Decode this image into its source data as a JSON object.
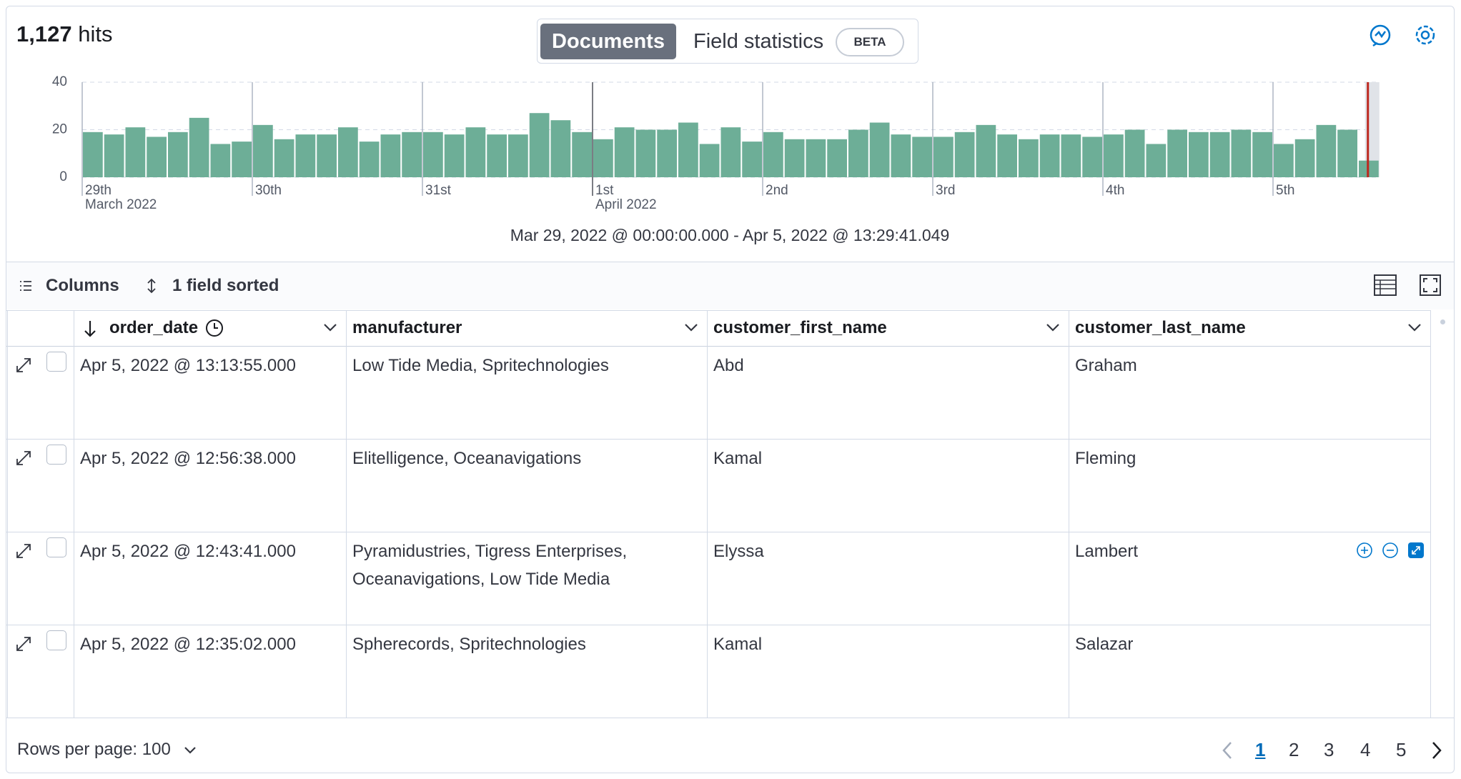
{
  "header": {
    "hits_count": "1,127",
    "hits_label": "hits",
    "tabs": [
      "Documents",
      "Field statistics"
    ],
    "beta_badge": "BETA"
  },
  "chart_data": {
    "type": "bar",
    "categories": [
      "29th",
      null,
      null,
      null,
      null,
      null,
      null,
      null,
      "30th",
      null,
      null,
      null,
      null,
      null,
      null,
      null,
      "31st",
      null,
      null,
      null,
      null,
      null,
      null,
      null,
      "1st",
      null,
      null,
      null,
      null,
      null,
      null,
      null,
      "2nd",
      null,
      null,
      null,
      null,
      null,
      null,
      null,
      "3rd",
      null,
      null,
      null,
      null,
      null,
      null,
      null,
      "4th",
      null,
      null,
      null,
      null,
      null,
      null,
      null,
      "5th",
      null,
      null,
      null,
      null
    ],
    "month_labels": [
      "March 2022",
      null,
      null,
      null,
      null,
      null,
      null,
      null,
      null,
      null,
      null,
      null,
      null,
      null,
      null,
      null,
      null,
      null,
      null,
      null,
      null,
      null,
      null,
      null,
      "April 2022",
      null,
      null,
      null,
      null,
      null,
      null,
      null,
      null,
      null,
      null,
      null,
      null,
      null,
      null,
      null,
      null,
      null,
      null,
      null,
      null,
      null,
      null,
      null,
      null,
      null,
      null,
      null,
      null,
      null,
      null,
      null,
      null,
      null,
      null,
      null,
      null
    ],
    "values": [
      19,
      18,
      21,
      17,
      19,
      25,
      14,
      15,
      22,
      16,
      18,
      18,
      21,
      15,
      18,
      19,
      19,
      18,
      21,
      18,
      18,
      27,
      24,
      19,
      16,
      21,
      20,
      20,
      23,
      14,
      21,
      15,
      19,
      16,
      16,
      16,
      20,
      23,
      18,
      17,
      17,
      19,
      22,
      18,
      16,
      18,
      18,
      17,
      18,
      20,
      14,
      20,
      19,
      19,
      20,
      19,
      14,
      16,
      22,
      20,
      7
    ],
    "color": "#6dae97",
    "ylim": [
      0,
      40
    ],
    "yticks": [
      0,
      20,
      40
    ],
    "grid": true,
    "time_range": "Mar 29, 2022 @ 00:00:00.000 - Apr 5, 2022 @ 13:29:41.049"
  },
  "toolbar": {
    "columns": "Columns",
    "sort": "1 field sorted"
  },
  "table": {
    "headers": [
      "order_date",
      "manufacturer",
      "customer_first_name",
      "customer_last_name"
    ],
    "rows": [
      [
        "Apr 5, 2022 @ 13:13:55.000",
        "Low Tide Media, Spritechnologies",
        "Abd",
        "Graham"
      ],
      [
        "Apr 5, 2022 @ 12:56:38.000",
        "Elitelligence, Oceanavigations",
        "Kamal",
        "Fleming"
      ],
      [
        "Apr 5, 2022 @ 12:43:41.000",
        "Pyramidustries, Tigress Enterprises, Oceanavigations, Low Tide Media",
        "Elyssa",
        "Lambert"
      ],
      [
        "Apr 5, 2022 @ 12:35:02.000",
        "Spherecords, Spritechnologies",
        "Kamal",
        "Salazar"
      ]
    ]
  },
  "footer": {
    "rows_per_page": "Rows per page: 100",
    "pages": [
      1,
      2,
      3,
      4,
      5
    ]
  }
}
